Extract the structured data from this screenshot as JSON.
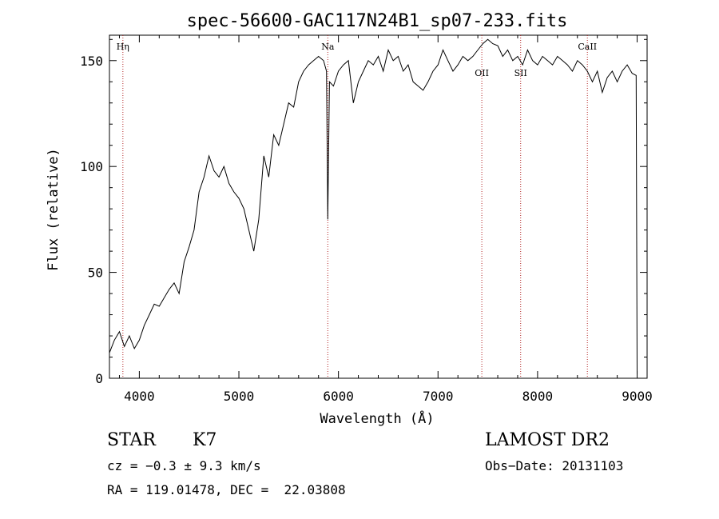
{
  "chart_data": {
    "type": "line",
    "title": "spec-56600-GAC117N24B1_sp07-233.fits",
    "xlabel": "Wavelength (Å)",
    "ylabel": "Flux (relative)",
    "xlim": [
      3700,
      9100
    ],
    "ylim": [
      0,
      162
    ],
    "xticks": [
      4000,
      5000,
      6000,
      7000,
      8000,
      9000
    ],
    "yticks": [
      0,
      50,
      100,
      150
    ],
    "line_color": "#000000",
    "marker_color": "#b22222",
    "spectral_lines": [
      {
        "label": "Hη",
        "wavelength": 3835
      },
      {
        "label": "Na",
        "wavelength": 5893
      },
      {
        "label": "OII",
        "wavelength": 7440
      },
      {
        "label": "SII",
        "wavelength": 7830
      },
      {
        "label": "CaII",
        "wavelength": 8500
      }
    ],
    "series": [
      {
        "x": [
          3700,
          3750,
          3800,
          3850,
          3900,
          3950,
          4000,
          4050,
          4100,
          4150,
          4200,
          4250,
          4300,
          4350,
          4400,
          4450,
          4500,
          4550,
          4600,
          4650,
          4700,
          4750,
          4800,
          4850,
          4900,
          4950,
          5000,
          5050,
          5100,
          5150,
          5200,
          5250,
          5300,
          5350,
          5400,
          5450,
          5500,
          5550,
          5600,
          5650,
          5700,
          5750,
          5800,
          5850,
          5880,
          5893,
          5910,
          5950,
          6000,
          6050,
          6100,
          6150,
          6200,
          6250,
          6300,
          6350,
          6400,
          6450,
          6500,
          6550,
          6600,
          6650,
          6700,
          6750,
          6800,
          6850,
          6900,
          6950,
          7000,
          7050,
          7100,
          7150,
          7200,
          7250,
          7300,
          7350,
          7400,
          7450,
          7500,
          7550,
          7600,
          7650,
          7700,
          7750,
          7800,
          7850,
          7900,
          7950,
          8000,
          8050,
          8100,
          8150,
          8200,
          8250,
          8300,
          8350,
          8400,
          8450,
          8500,
          8550,
          8600,
          8650,
          8700,
          8750,
          8800,
          8850,
          8900,
          8950,
          8990,
          9000
        ],
        "y": [
          12,
          18,
          22,
          15,
          20,
          14,
          18,
          25,
          30,
          35,
          34,
          38,
          42,
          45,
          40,
          55,
          62,
          70,
          88,
          95,
          105,
          98,
          95,
          100,
          92,
          88,
          85,
          80,
          70,
          60,
          75,
          105,
          95,
          115,
          110,
          120,
          130,
          128,
          140,
          145,
          148,
          150,
          152,
          150,
          145,
          75,
          140,
          138,
          145,
          148,
          150,
          130,
          140,
          145,
          150,
          148,
          152,
          145,
          155,
          150,
          152,
          145,
          148,
          140,
          138,
          136,
          140,
          145,
          148,
          155,
          150,
          145,
          148,
          152,
          150,
          152,
          155,
          158,
          160,
          158,
          157,
          152,
          155,
          150,
          152,
          148,
          155,
          150,
          148,
          152,
          150,
          148,
          152,
          150,
          148,
          145,
          150,
          148,
          145,
          140,
          145,
          135,
          142,
          145,
          140,
          145,
          148,
          144,
          143,
          2
        ]
      }
    ]
  },
  "info": {
    "object_class": "STAR",
    "subclass": "K7",
    "cz": "cz = −0.3 ± 9.3 km/s",
    "coords": "RA = 119.01478, DEC =  22.03808",
    "survey": "LAMOST DR2",
    "obs_date": "Obs−Date: 20131103"
  }
}
